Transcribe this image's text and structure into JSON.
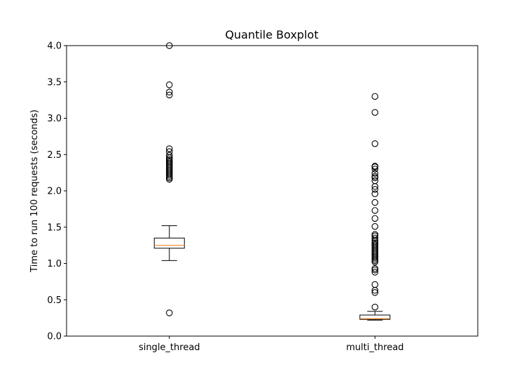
{
  "chart_data": {
    "type": "boxplot",
    "title": "Quantile Boxplot",
    "xlabel": "",
    "ylabel": "Time to run 100 requests (seconds)",
    "ylim": [
      0.0,
      4.0
    ],
    "yticks": [
      "0.0",
      "0.5",
      "1.0",
      "1.5",
      "2.0",
      "2.5",
      "3.0",
      "3.5",
      "4.0"
    ],
    "grid": false,
    "colors": {
      "box": "#000000",
      "median": "#ff7f0e",
      "flier": "#000000",
      "background": "#ffffff"
    },
    "categories": [
      "single_thread",
      "multi_thread"
    ],
    "boxes": [
      {
        "name": "single_thread",
        "whisker_low": 1.04,
        "q1": 1.21,
        "median": 1.25,
        "q3": 1.35,
        "whisker_high": 1.52,
        "fliers": [
          0.32,
          2.16,
          2.18,
          2.2,
          2.22,
          2.24,
          2.26,
          2.28,
          2.3,
          2.32,
          2.34,
          2.36,
          2.38,
          2.4,
          2.42,
          2.44,
          2.46,
          2.49,
          2.54,
          2.58,
          3.32,
          3.36,
          3.46,
          4.0
        ]
      },
      {
        "name": "multi_thread",
        "whisker_low": 0.22,
        "q1": 0.23,
        "median": 0.24,
        "q3": 0.29,
        "whisker_high": 0.34,
        "fliers": [
          0.4,
          0.6,
          0.63,
          0.71,
          0.88,
          0.91,
          0.93,
          1.02,
          1.04,
          1.06,
          1.08,
          1.1,
          1.12,
          1.14,
          1.16,
          1.18,
          1.2,
          1.22,
          1.24,
          1.26,
          1.28,
          1.3,
          1.32,
          1.35,
          1.38,
          1.4,
          1.51,
          1.62,
          1.73,
          1.84,
          1.96,
          2.02,
          2.06,
          2.14,
          2.18,
          2.2,
          2.24,
          2.3,
          2.33,
          2.34,
          2.65,
          3.08,
          3.3
        ]
      }
    ]
  }
}
